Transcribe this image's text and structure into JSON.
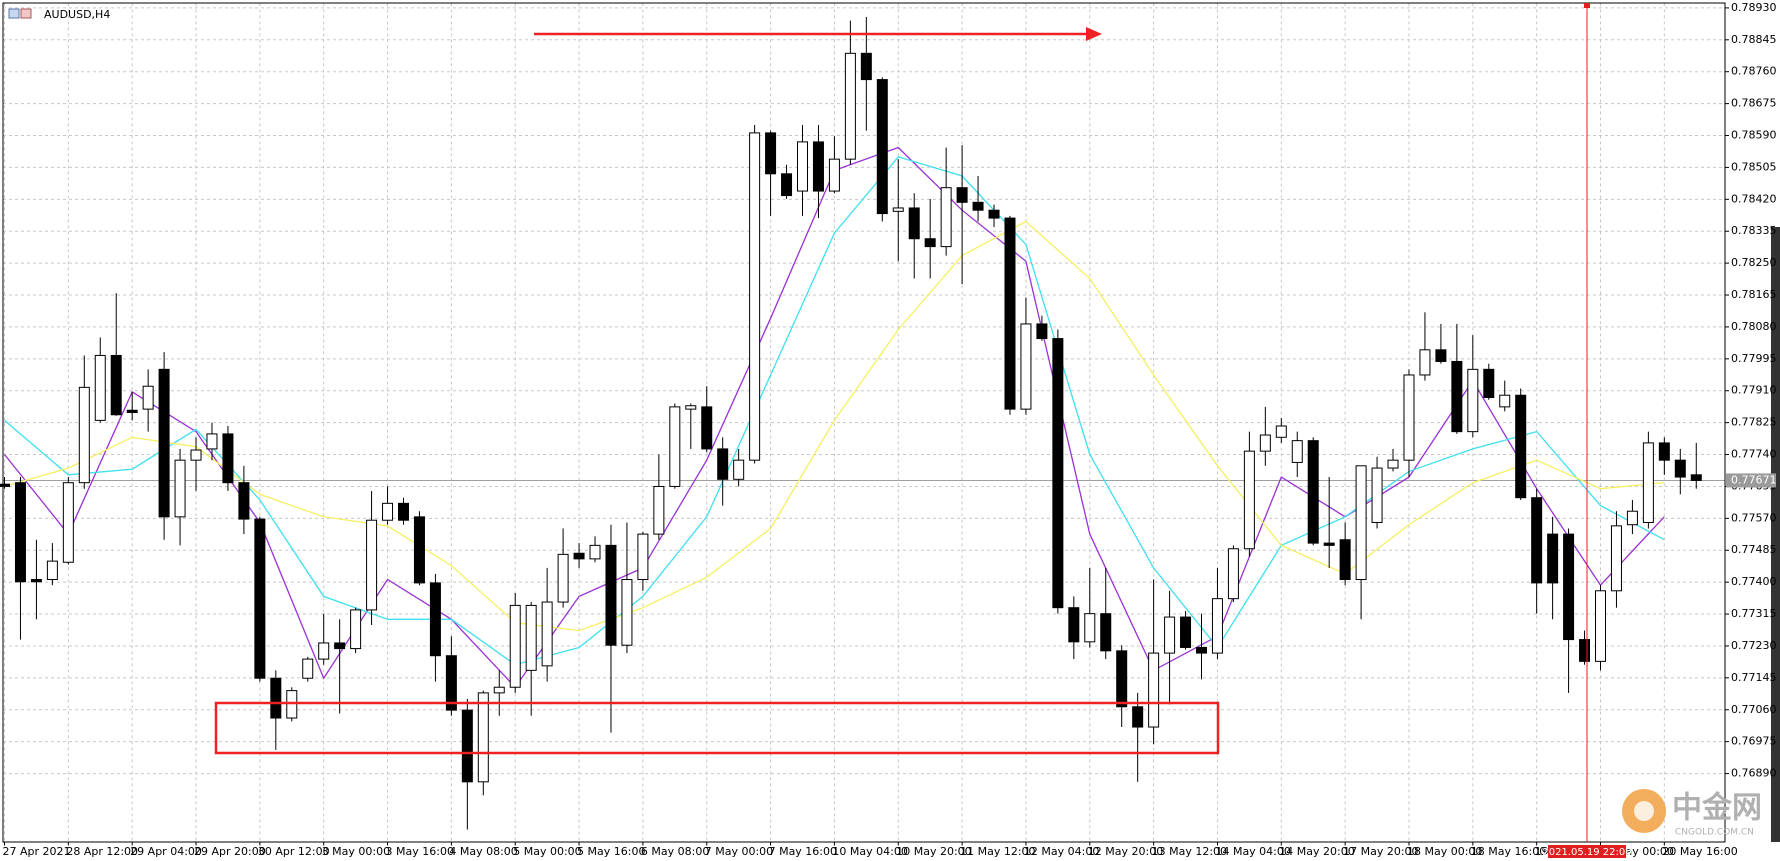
{
  "chart_data": {
    "type": "candlestick",
    "title": "AUDUSD,H4",
    "categories": [
      "27 Apr 2021",
      null,
      null,
      null,
      "28 Apr 12:00",
      null,
      null,
      null,
      "29 Apr 04:00",
      null,
      null,
      null,
      "29 Apr 20:00",
      null,
      null,
      null,
      "30 Apr 12:00",
      null,
      null,
      null,
      "3 May 00:00",
      null,
      null,
      null,
      "3 May 16:00",
      null,
      null,
      null,
      "4 May 08:00",
      null,
      null,
      null,
      "5 May 00:00",
      null,
      null,
      null,
      "5 May 16:00",
      null,
      null,
      null,
      "6 May 08:00",
      null,
      null,
      null,
      "7 May 00:00",
      null,
      null,
      null,
      "7 May 16:00",
      null,
      null,
      null,
      "10 May 04:00",
      null,
      null,
      null,
      "10 May 20:00",
      null,
      null,
      null,
      "11 May 12:00",
      null,
      null,
      null,
      "12 May 04:00",
      null,
      null,
      null,
      "12 May 20:00",
      null,
      null,
      null,
      "13 May 12:00",
      null,
      null,
      null,
      "14 May 04:00",
      null,
      null,
      null,
      "14 May 20:00",
      null,
      null,
      null,
      "17 May 20:00",
      null,
      null,
      null,
      "18 May 00:00",
      null,
      null,
      null,
      "18 May 16:00",
      null,
      null,
      null,
      "19 May 08:00",
      null,
      null,
      null,
      "20 May 00:00",
      null,
      null,
      null,
      "20 May 16:00",
      null,
      null
    ],
    "open": [
      0.77661,
      0.77665,
      0.77407,
      0.77407,
      0.77453,
      0.77665,
      0.77831,
      0.78004,
      0.77858,
      0.77861,
      0.77967,
      0.77574,
      0.77725,
      0.77755,
      0.77795,
      0.77665,
      0.77568,
      0.77144,
      0.77038,
      0.77144,
      0.77195,
      0.77238,
      0.77223,
      0.77326,
      0.77565,
      0.7761,
      0.77574,
      0.77398,
      0.77204,
      0.77059,
      0.76868,
      0.77105,
      0.7712,
      0.77165,
      0.77177,
      0.77347,
      0.77477,
      0.77462,
      0.77498,
      0.77232,
      0.77407,
      0.77528,
      0.77655,
      0.77861,
      0.77867,
      0.77755,
      0.77674,
      0.77725,
      0.78597,
      0.78488,
      0.78442,
      0.78573,
      0.78442,
      0.78527,
      0.78809,
      0.78739,
      0.78388,
      0.78397,
      0.78315,
      0.78294,
      0.78451,
      0.78412,
      0.78391,
      0.7837,
      0.77861,
      0.78088,
      0.78049,
      0.77332,
      0.77241,
      0.77316,
      0.77217,
      0.77068,
      0.77014,
      0.77211,
      0.77307,
      0.77226,
      0.77211,
      0.77356,
      0.77489,
      0.77749,
      0.77786,
      0.77719,
      0.77777,
      0.77504,
      0.77513,
      0.77407,
      0.77559,
      0.77704,
      0.77725,
      0.77952,
      0.78019,
      0.77988,
      0.77801,
      0.77967,
      0.77867,
      0.77898,
      0.77625,
      0.77528,
      0.77528,
      0.77247,
      0.77189,
      0.77377,
      0.77553,
      0.77559,
      0.77771,
      0.77725,
      0.77686
    ],
    "high": [
      0.7768,
      0.7768,
      0.77513,
      0.77504,
      0.7768,
      0.78004,
      0.78052,
      0.7817,
      0.77907,
      0.77967,
      0.78013,
      0.77755,
      0.77786,
      0.77825,
      0.77816,
      0.7771,
      0.77574,
      0.77165,
      0.7712,
      0.77201,
      0.77316,
      0.77301,
      0.77332,
      0.77643,
      0.77655,
      0.77625,
      0.77589,
      0.77422,
      0.77256,
      0.77089,
      0.77111,
      0.77165,
      0.77371,
      0.77347,
      0.77438,
      0.77543,
      0.77504,
      0.77522,
      0.77553,
      0.77559,
      0.77534,
      0.7774,
      0.77876,
      0.77876,
      0.77922,
      0.77786,
      0.77755,
      0.78618,
      0.78603,
      0.78512,
      0.78618,
      0.78618,
      0.78588,
      0.78896,
      0.78906,
      0.78745,
      0.78527,
      0.78436,
      0.78421,
      0.78558,
      0.78564,
      0.78482,
      0.78406,
      0.78376,
      0.78158,
      0.7811,
      0.78073,
      0.77362,
      0.77438,
      0.77438,
      0.77232,
      0.77105,
      0.77407,
      0.77377,
      0.77323,
      0.77316,
      0.77438,
      0.77498,
      0.77801,
      0.77867,
      0.77837,
      0.77801,
      0.77786,
      0.7768,
      0.77559,
      0.7771,
      0.77734,
      0.77755,
      0.77967,
      0.78119,
      0.78088,
      0.78088,
      0.78058,
      0.77982,
      0.77937,
      0.77916,
      0.77649,
      0.77574,
      0.77543,
      0.77271,
      0.77392,
      0.77589,
      0.77619,
      0.77801,
      0.77786,
      0.77755,
      0.77771
    ],
    "low": [
      0.77649,
      0.77247,
      0.77301,
      0.77392,
      0.77447,
      0.77649,
      0.77825,
      0.77843,
      0.77831,
      0.77801,
      0.77513,
      0.77498,
      0.77643,
      0.77725,
      0.77643,
      0.77528,
      0.77135,
      0.76953,
      0.77029,
      0.77135,
      0.7718,
      0.7705,
      0.77211,
      0.77286,
      0.77553,
      0.77553,
      0.77392,
      0.77135,
      0.77044,
      0.76741,
      0.76832,
      0.77044,
      0.77105,
      0.77044,
      0.77135,
      0.77332,
      0.77438,
      0.77453,
      0.76999,
      0.77211,
      0.77377,
      0.77513,
      0.77649,
      0.77755,
      0.77746,
      0.77604,
      0.77655,
      0.77716,
      0.78376,
      0.78421,
      0.78376,
      0.7837,
      0.78436,
      0.78512,
      0.78603,
      0.78361,
      0.78255,
      0.78209,
      0.78209,
      0.7827,
      0.78194,
      0.78361,
      0.78346,
      0.77846,
      0.77846,
      0.78043,
      0.77316,
      0.77195,
      0.77226,
      0.77195,
      0.77014,
      0.76868,
      0.76968,
      0.77074,
      0.7722,
      0.77141,
      0.77195,
      0.77347,
      0.77468,
      0.7771,
      0.77771,
      0.7768,
      0.77498,
      0.77438,
      0.77392,
      0.77301,
      0.77543,
      0.77695,
      0.7768,
      0.77937,
      0.77982,
      0.77795,
      0.77786,
      0.77886,
      0.77855,
      0.77619,
      0.77316,
      0.77301,
      0.77105,
      0.7718,
      0.77165,
      0.77332,
      0.77528,
      0.77543,
      0.77686,
      0.77634,
      0.77649
    ],
    "close": [
      0.77655,
      0.77401,
      0.77401,
      0.77456,
      0.77665,
      0.77919,
      0.78004,
      0.77846,
      0.77852,
      0.77922,
      0.77574,
      0.77725,
      0.77752,
      0.77795,
      0.77665,
      0.77568,
      0.77144,
      0.77038,
      0.77111,
      0.77195,
      0.77238,
      0.77223,
      0.77326,
      0.77565,
      0.7761,
      0.77565,
      0.77398,
      0.77204,
      0.77059,
      0.76868,
      0.77105,
      0.7712,
      0.77338,
      0.77338,
      0.77347,
      0.77474,
      0.77462,
      0.77498,
      0.77232,
      0.77407,
      0.77528,
      0.77655,
      0.77867,
      0.7787,
      0.77755,
      0.77674,
      0.77725,
      0.78597,
      0.78488,
      0.7843,
      0.78573,
      0.78442,
      0.78527,
      0.78809,
      0.78739,
      0.78382,
      0.78397,
      0.78315,
      0.78294,
      0.78451,
      0.78412,
      0.78391,
      0.7837,
      0.77861,
      0.78088,
      0.78049,
      0.77332,
      0.77241,
      0.77316,
      0.77217,
      0.77068,
      0.77014,
      0.77211,
      0.77307,
      0.77226,
      0.77211,
      0.77356,
      0.77489,
      0.77749,
      0.77792,
      0.77816,
      0.77777,
      0.77504,
      0.77498,
      0.77407,
      0.7771,
      0.77704,
      0.77725,
      0.77952,
      0.78019,
      0.77988,
      0.77801,
      0.77967,
      0.77892,
      0.77898,
      0.77625,
      0.77398,
      0.77398,
      0.77247,
      0.77189,
      0.77377,
      0.7755,
      0.77589,
      0.77771,
      0.77725,
      0.7768,
      0.77671
    ],
    "up_color": "#ffffff",
    "down_color": "#000000",
    "overlays": [
      {
        "color": "#9b30d6",
        "x": [
          0,
          4,
          8,
          12,
          16,
          20,
          24,
          28,
          32,
          36,
          40,
          44,
          48,
          52,
          56,
          60,
          64,
          68,
          72,
          76,
          80,
          84,
          88,
          92,
          96,
          100,
          104
        ],
        "values": [
          0.7774,
          0.77528,
          0.77907,
          0.77801,
          0.77559,
          0.77144,
          0.77407,
          0.77301,
          0.7712,
          0.77362,
          0.77438,
          0.77725,
          0.78103,
          0.78497,
          0.78558,
          0.78391,
          0.78255,
          0.77528,
          0.77165,
          0.77256,
          0.7768,
          0.77574,
          0.7768,
          0.77937,
          0.77649,
          0.77392,
          0.77574
        ]
      },
      {
        "color": "#3fe0ef",
        "x": [
          0,
          4,
          8,
          12,
          16,
          20,
          24,
          28,
          32,
          36,
          40,
          44,
          48,
          52,
          56,
          60,
          64,
          68,
          72,
          76,
          80,
          84,
          88,
          92,
          96,
          100,
          104
        ],
        "values": [
          0.77831,
          0.77686,
          0.77701,
          0.77807,
          0.77619,
          0.77362,
          0.77301,
          0.77301,
          0.7718,
          0.77226,
          0.77362,
          0.77574,
          0.77952,
          0.7833,
          0.78533,
          0.78482,
          0.783,
          0.7774,
          0.77438,
          0.77226,
          0.77498,
          0.77574,
          0.77695,
          0.77755,
          0.77801,
          0.77604,
          0.77513
        ]
      },
      {
        "color": "#f5f060",
        "x": [
          0,
          4,
          8,
          12,
          16,
          20,
          24,
          28,
          32,
          36,
          40,
          44,
          48,
          52,
          56,
          60,
          64,
          68,
          72,
          76,
          80,
          84,
          88,
          92,
          96,
          100,
          104
        ],
        "values": [
          0.77655,
          0.77704,
          0.77786,
          0.77761,
          0.77634,
          0.77574,
          0.7755,
          0.77444,
          0.77292,
          0.77271,
          0.77332,
          0.77413,
          0.77543,
          0.77831,
          0.78073,
          0.7827,
          0.78361,
          0.78209,
          0.77952,
          0.7771,
          0.77498,
          0.77422,
          0.77553,
          0.77665,
          0.77725,
          0.77649,
          0.77665
        ]
      }
    ],
    "ylim": [
      0.76709,
      0.78942
    ],
    "yticks": [
      {
        "value": 0.7893,
        "label": "0.78930"
      },
      0.78845,
      {
        "value": 0.7876,
        "label": "0.78760"
      },
      0.78675,
      {
        "value": 0.7859,
        "label": "0.78590"
      },
      0.78505,
      {
        "value": 0.7842,
        "label": "0.78420"
      },
      0.78335,
      {
        "value": 0.7825,
        "label": "0.78250"
      },
      0.78165,
      {
        "value": 0.7808,
        "label": "0.78080"
      },
      0.77995,
      {
        "value": 0.7791,
        "label": "0.77910"
      },
      0.77825,
      {
        "value": 0.7774,
        "label": "0.77740"
      },
      0.77655,
      {
        "value": 0.7757,
        "label": "0.77570"
      },
      0.77485,
      {
        "value": 0.774,
        "label": "0.77400"
      },
      0.77315,
      {
        "value": 0.7723,
        "label": "0.77230"
      },
      0.77145,
      {
        "value": 0.7706,
        "label": "0.77060"
      },
      0.76975,
      {
        "value": 0.7689,
        "label": "0.76890"
      }
    ],
    "grid": true,
    "current_price": 0.77671,
    "cursor_label": "2021.05.19 22:00"
  },
  "watermark": {
    "title": "中金网",
    "subtitle": "CNGOLD.COM.CN"
  }
}
